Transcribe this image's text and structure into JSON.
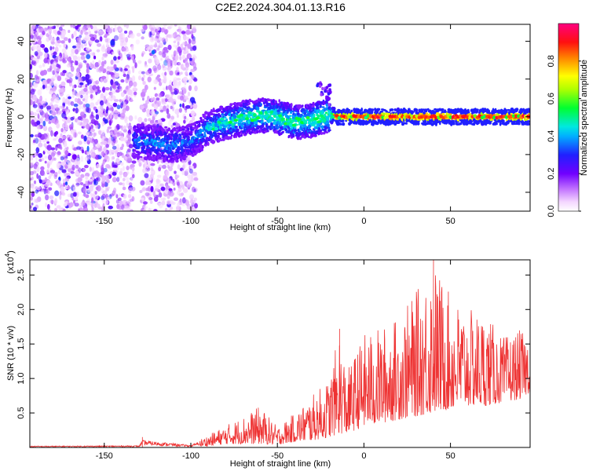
{
  "page_title": "C2E2.2024.304.01.13.R16",
  "chart_data": [
    {
      "type": "heatmap",
      "title": "C2E2.2024.304.01.13.R16",
      "xlabel": "Height of straight line (km)",
      "ylabel": "Frequency (Hz)",
      "xlim": [
        -193,
        96
      ],
      "ylim": [
        -50,
        49
      ],
      "x_ticks": [
        -150,
        -100,
        -50,
        0,
        50
      ],
      "x_tick_labels": [
        "-150",
        "-100",
        "-50",
        "0",
        "50"
      ],
      "y_ticks": [
        -40,
        -20,
        0,
        20,
        40
      ],
      "y_tick_labels": [
        "-40",
        "-20",
        "0",
        "20",
        "40"
      ],
      "colorbar": {
        "label": "Normalized spectral amplitude",
        "range": [
          0,
          1
        ],
        "ticks": [
          0.0,
          0.2,
          0.4,
          0.6,
          0.8
        ],
        "tick_labels": [
          "0.0",
          "0.2",
          "0.4",
          "0.6",
          "0.8"
        ],
        "colormap": "rainbow (white-purple-blue-cyan-green-yellow-red-magenta)"
      },
      "ridge": [
        {
          "x": -130,
          "y": -13,
          "z": 0.35
        },
        {
          "x": -120,
          "y": -14,
          "z": 0.38
        },
        {
          "x": -110,
          "y": -15,
          "z": 0.38
        },
        {
          "x": -100,
          "y": -13,
          "z": 0.35
        },
        {
          "x": -90,
          "y": -6,
          "z": 0.42
        },
        {
          "x": -80,
          "y": -3,
          "z": 0.45
        },
        {
          "x": -70,
          "y": -1,
          "z": 0.48
        },
        {
          "x": -60,
          "y": 1,
          "z": 0.5
        },
        {
          "x": -50,
          "y": 0,
          "z": 0.5
        },
        {
          "x": -40,
          "y": -3,
          "z": 0.5
        },
        {
          "x": -30,
          "y": -2,
          "z": 0.5
        },
        {
          "x": -20,
          "y": 1,
          "z": 0.55
        },
        {
          "x": -15,
          "y": 0,
          "z": 0.85
        },
        {
          "x": 0,
          "y": 0,
          "z": 0.9
        },
        {
          "x": 25,
          "y": 0,
          "z": 0.9
        },
        {
          "x": 50,
          "y": 0,
          "z": 0.92
        },
        {
          "x": 75,
          "y": 0,
          "z": 0.92
        },
        {
          "x": 95,
          "y": 0,
          "z": 0.92
        }
      ],
      "noise_region_xlim": [
        -193,
        -97
      ]
    },
    {
      "type": "line",
      "xlabel": "Height of straight line (km)",
      "ylabel": "SNR (10 * v/v)",
      "y_multiplier_label": "(x10",
      "y_multiplier_exp": "4",
      "y_multiplier_close": ")",
      "xlim": [
        -193,
        96
      ],
      "ylim": [
        0,
        2.72
      ],
      "x_ticks": [
        -150,
        -100,
        -50,
        0,
        50
      ],
      "x_tick_labels": [
        "-150",
        "-100",
        "-50",
        "0",
        "50"
      ],
      "y_ticks": [
        0.5,
        1.0,
        1.5,
        2.0,
        2.5
      ],
      "y_tick_labels": [
        "0.5",
        "1.0",
        "1.5",
        "2.0",
        "2.5"
      ],
      "series": [
        {
          "color": "#ee3333",
          "envelope": [
            {
              "x": -193,
              "low": 0.0,
              "high": 0.03
            },
            {
              "x": -130,
              "low": 0.0,
              "high": 0.04
            },
            {
              "x": -128,
              "low": 0.0,
              "high": 0.15
            },
            {
              "x": -100,
              "low": 0.0,
              "high": 0.05
            },
            {
              "x": -90,
              "low": 0.02,
              "high": 0.18
            },
            {
              "x": -80,
              "low": 0.05,
              "high": 0.32
            },
            {
              "x": -70,
              "low": 0.05,
              "high": 0.45
            },
            {
              "x": -60,
              "low": 0.05,
              "high": 0.6
            },
            {
              "x": -50,
              "low": 0.04,
              "high": 0.3
            },
            {
              "x": -40,
              "low": 0.08,
              "high": 0.5
            },
            {
              "x": -30,
              "low": 0.1,
              "high": 0.75
            },
            {
              "x": -20,
              "low": 0.15,
              "high": 1.0
            },
            {
              "x": -14,
              "low": 0.2,
              "high": 1.72
            },
            {
              "x": -10,
              "low": 0.2,
              "high": 1.1
            },
            {
              "x": 0,
              "low": 0.3,
              "high": 1.65
            },
            {
              "x": 10,
              "low": 0.35,
              "high": 1.75
            },
            {
              "x": 20,
              "low": 0.4,
              "high": 1.9
            },
            {
              "x": 30,
              "low": 0.45,
              "high": 2.25
            },
            {
              "x": 40,
              "low": 0.5,
              "high": 2.72
            },
            {
              "x": 50,
              "low": 0.55,
              "high": 2.2
            },
            {
              "x": 60,
              "low": 0.6,
              "high": 2.0
            },
            {
              "x": 70,
              "low": 0.6,
              "high": 1.95
            },
            {
              "x": 80,
              "low": 0.65,
              "high": 1.6
            },
            {
              "x": 90,
              "low": 0.7,
              "high": 1.7
            },
            {
              "x": 96,
              "low": 0.8,
              "high": 1.6
            }
          ]
        }
      ]
    }
  ]
}
